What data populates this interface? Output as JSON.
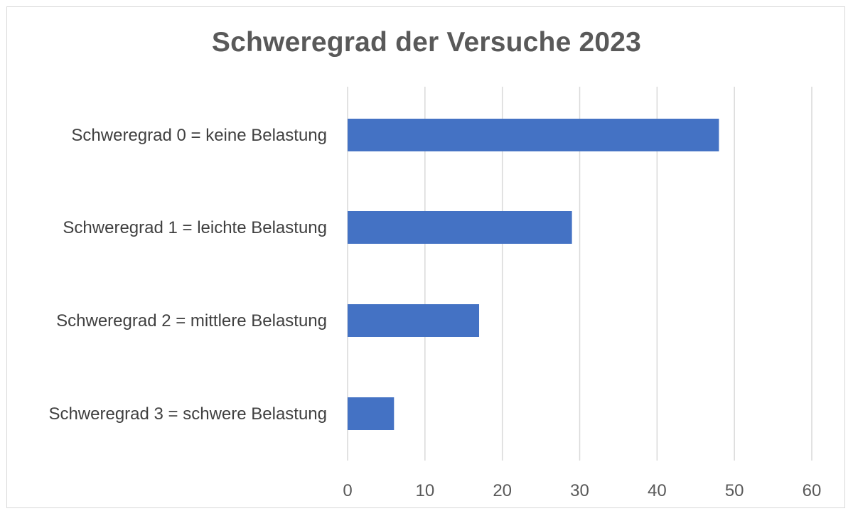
{
  "chart_data": {
    "type": "bar",
    "orientation": "horizontal",
    "title": "Schweregrad der Versuche 2023",
    "categories": [
      "Schweregrad 0 = keine Belastung",
      "Schweregrad 1 = leichte Belastung",
      "Schweregrad 2 = mittlere Belastung",
      "Schweregrad 3 = schwere Belastung"
    ],
    "values": [
      48,
      29,
      17,
      6
    ],
    "xlim": [
      0,
      60
    ],
    "xticks": [
      0,
      10,
      20,
      30,
      40,
      50,
      60
    ],
    "xtick_labels": [
      "0",
      "10",
      "20",
      "30",
      "40",
      "50",
      "60"
    ],
    "xlabel": "",
    "ylabel": "",
    "grid": "vertical",
    "legend": "none",
    "bar_color": "#4472c4",
    "grid_color": "#d9d9d9"
  }
}
